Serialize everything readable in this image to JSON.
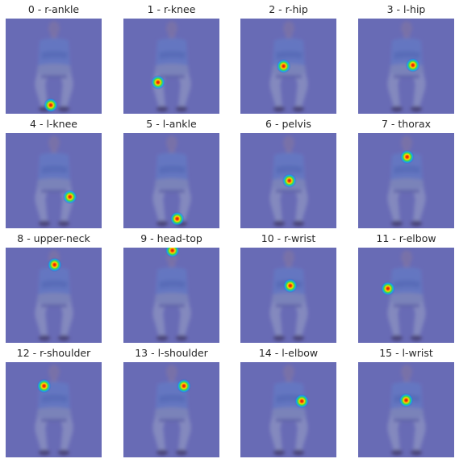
{
  "panels": [
    {
      "title": "0 - r-ankle",
      "heatmap_center": {
        "fx": 0.47,
        "fy": 0.91
      }
    },
    {
      "title": "1 - r-knee",
      "heatmap_center": {
        "fx": 0.36,
        "fy": 0.67
      }
    },
    {
      "title": "2 - r-hip",
      "heatmap_center": {
        "fx": 0.45,
        "fy": 0.5
      }
    },
    {
      "title": "3 - l-hip",
      "heatmap_center": {
        "fx": 0.57,
        "fy": 0.49
      }
    },
    {
      "title": "4 - l-knee",
      "heatmap_center": {
        "fx": 0.67,
        "fy": 0.67
      }
    },
    {
      "title": "5 - l-ankle",
      "heatmap_center": {
        "fx": 0.56,
        "fy": 0.9
      }
    },
    {
      "title": "6 - pelvis",
      "heatmap_center": {
        "fx": 0.51,
        "fy": 0.5
      }
    },
    {
      "title": "7 - thorax",
      "heatmap_center": {
        "fx": 0.51,
        "fy": 0.25
      }
    },
    {
      "title": "8 - upper-neck",
      "heatmap_center": {
        "fx": 0.51,
        "fy": 0.18
      }
    },
    {
      "title": "9 - head-top",
      "heatmap_center": {
        "fx": 0.51,
        "fy": 0.03
      }
    },
    {
      "title": "10 - r-wrist",
      "heatmap_center": {
        "fx": 0.52,
        "fy": 0.4
      }
    },
    {
      "title": "11 - r-elbow",
      "heatmap_center": {
        "fx": 0.31,
        "fy": 0.43
      }
    },
    {
      "title": "12 - r-shoulder",
      "heatmap_center": {
        "fx": 0.4,
        "fy": 0.25
      }
    },
    {
      "title": "13 - l-shoulder",
      "heatmap_center": {
        "fx": 0.63,
        "fy": 0.25
      }
    },
    {
      "title": "14 - l-elbow",
      "heatmap_center": {
        "fx": 0.64,
        "fy": 0.41
      }
    },
    {
      "title": "15 - l-wrist",
      "heatmap_center": {
        "fx": 0.5,
        "fy": 0.4
      }
    }
  ]
}
